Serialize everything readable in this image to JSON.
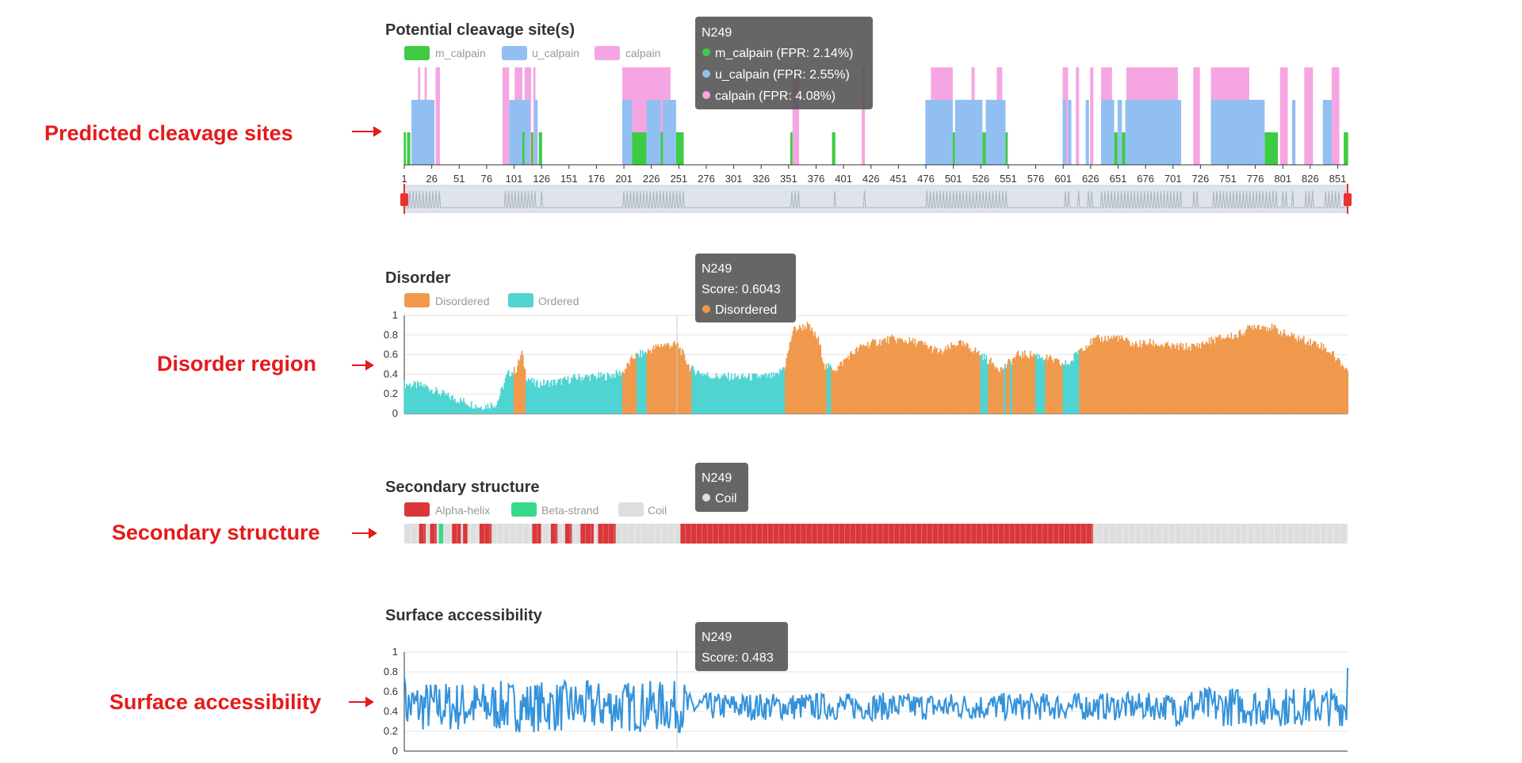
{
  "side_labels": {
    "cleavage": "Predicted cleavage sites",
    "disorder": "Disorder region",
    "secondary": "Secondary structure",
    "surface": "Surface accessibility"
  },
  "colors": {
    "m_calpain": "#3ecb44",
    "u_calpain": "#92bff2",
    "calpain": "#f5a6e2",
    "disordered": "#f0994c",
    "ordered": "#4fd4d2",
    "alpha_helix": "#d9373a",
    "beta_strand": "#39d98a",
    "coil": "#dedede",
    "surface_line": "#3392db",
    "side_label": "#e51a1a"
  },
  "chart_data": [
    {
      "type": "bar",
      "title": "Potential cleavage site(s)",
      "legend": [
        "m_calpain",
        "u_calpain",
        "calpain"
      ],
      "x_ticks": [
        "1",
        "26",
        "51",
        "76",
        "101",
        "126",
        "151",
        "176",
        "201",
        "226",
        "251",
        "276",
        "301",
        "326",
        "351",
        "376",
        "401",
        "426",
        "451",
        "476",
        "501",
        "526",
        "551",
        "576",
        "601",
        "626",
        "651",
        "676",
        "701",
        "726",
        "751",
        "776",
        "801",
        "826",
        "851"
      ],
      "x_range": [
        1,
        860
      ],
      "levels": {
        "m_calpain": 1,
        "u_calpain": 2,
        "calpain": 3
      },
      "m_calpain_segments": [
        [
          1,
          2
        ],
        [
          4,
          6
        ],
        [
          109,
          110
        ],
        [
          117,
          118
        ],
        [
          124,
          126
        ],
        [
          209,
          221
        ],
        [
          235,
          236
        ],
        [
          249,
          255
        ],
        [
          353,
          354
        ],
        [
          391,
          393
        ],
        [
          501,
          502
        ],
        [
          528,
          530
        ],
        [
          549,
          550
        ],
        [
          648,
          650
        ],
        [
          655,
          657
        ],
        [
          785,
          796
        ],
        [
          857,
          860
        ]
      ],
      "u_calpain_segments": [
        [
          8,
          28
        ],
        [
          97,
          115
        ],
        [
          120,
          122
        ],
        [
          200,
          208
        ],
        [
          222,
          234
        ],
        [
          237,
          248
        ],
        [
          476,
          500
        ],
        [
          503,
          527
        ],
        [
          531,
          548
        ],
        [
          601,
          603
        ],
        [
          606,
          608
        ],
        [
          622,
          624
        ],
        [
          636,
          647
        ],
        [
          651,
          654
        ],
        [
          658,
          708
        ],
        [
          736,
          784
        ],
        [
          810,
          812
        ],
        [
          838,
          845
        ]
      ],
      "calpain_segments": [
        [
          14,
          15
        ],
        [
          20,
          21
        ],
        [
          30,
          33
        ],
        [
          91,
          96
        ],
        [
          102,
          108
        ],
        [
          111,
          116
        ],
        [
          119,
          120
        ],
        [
          200,
          243
        ],
        [
          355,
          360
        ],
        [
          418,
          420
        ],
        [
          481,
          500
        ],
        [
          518,
          520
        ],
        [
          541,
          545
        ],
        [
          601,
          605
        ],
        [
          613,
          615
        ],
        [
          626,
          628
        ],
        [
          636,
          645
        ],
        [
          659,
          705
        ],
        [
          720,
          725
        ],
        [
          736,
          770
        ],
        [
          799,
          805
        ],
        [
          821,
          828
        ],
        [
          846,
          852
        ]
      ],
      "tooltip": {
        "title": "N249",
        "items": [
          "m_calpain (FPR: 2.14%)",
          "u_calpain (FPR: 2.55%)",
          "calpain (FPR: 4.08%)"
        ]
      }
    },
    {
      "type": "bar",
      "title": "Disorder",
      "legend": [
        "Disordered",
        "Ordered"
      ],
      "y_ticks": [
        "0",
        "0.2",
        "0.4",
        "0.6",
        "0.8",
        "1"
      ],
      "ylim": [
        0,
        1
      ],
      "x_range": [
        1,
        860
      ],
      "profile": [
        [
          1,
          0.3
        ],
        [
          20,
          0.28
        ],
        [
          35,
          0.2
        ],
        [
          50,
          0.14
        ],
        [
          70,
          0.07
        ],
        [
          85,
          0.1
        ],
        [
          95,
          0.4
        ],
        [
          103,
          0.45
        ],
        [
          108,
          0.62
        ],
        [
          112,
          0.38
        ],
        [
          120,
          0.3
        ],
        [
          140,
          0.32
        ],
        [
          160,
          0.37
        ],
        [
          185,
          0.38
        ],
        [
          200,
          0.42
        ],
        [
          210,
          0.58
        ],
        [
          220,
          0.62
        ],
        [
          235,
          0.7
        ],
        [
          250,
          0.7
        ],
        [
          262,
          0.45
        ],
        [
          280,
          0.38
        ],
        [
          310,
          0.37
        ],
        [
          340,
          0.38
        ],
        [
          348,
          0.5
        ],
        [
          355,
          0.85
        ],
        [
          368,
          0.9
        ],
        [
          378,
          0.75
        ],
        [
          384,
          0.48
        ],
        [
          395,
          0.46
        ],
        [
          405,
          0.58
        ],
        [
          420,
          0.7
        ],
        [
          445,
          0.76
        ],
        [
          470,
          0.72
        ],
        [
          490,
          0.62
        ],
        [
          505,
          0.72
        ],
        [
          520,
          0.65
        ],
        [
          532,
          0.55
        ],
        [
          545,
          0.45
        ],
        [
          560,
          0.6
        ],
        [
          575,
          0.6
        ],
        [
          590,
          0.55
        ],
        [
          600,
          0.5
        ],
        [
          608,
          0.52
        ],
        [
          615,
          0.65
        ],
        [
          630,
          0.75
        ],
        [
          650,
          0.78
        ],
        [
          665,
          0.7
        ],
        [
          680,
          0.72
        ],
        [
          700,
          0.68
        ],
        [
          720,
          0.68
        ],
        [
          740,
          0.76
        ],
        [
          760,
          0.8
        ],
        [
          775,
          0.9
        ],
        [
          790,
          0.88
        ],
        [
          805,
          0.8
        ],
        [
          820,
          0.75
        ],
        [
          835,
          0.7
        ],
        [
          845,
          0.62
        ],
        [
          860,
          0.44
        ]
      ],
      "disordered_segments": [
        [
          101,
          111
        ],
        [
          200,
          212
        ],
        [
          222,
          262
        ],
        [
          348,
          385
        ],
        [
          390,
          525
        ],
        [
          533,
          546
        ],
        [
          549,
          552
        ],
        [
          555,
          575
        ],
        [
          585,
          600
        ],
        [
          616,
          860
        ]
      ],
      "tooltip": {
        "title": "N249",
        "score": "Score: 0.6043",
        "state": "Disordered"
      }
    },
    {
      "type": "heatmap",
      "title": "Secondary structure",
      "legend": [
        "Alpha-helix",
        "Beta-strand",
        "Coil"
      ],
      "x_range": [
        1,
        860
      ],
      "helix_segments": [
        [
          15,
          20
        ],
        [
          25,
          30
        ],
        [
          45,
          52
        ],
        [
          55,
          58
        ],
        [
          70,
          80
        ],
        [
          118,
          125
        ],
        [
          135,
          140
        ],
        [
          148,
          153
        ],
        [
          162,
          173
        ],
        [
          178,
          193
        ],
        [
          253,
          628
        ]
      ],
      "strand_segments": [
        [
          33,
          36
        ]
      ],
      "tooltip": {
        "title": "N249",
        "state": "Coil"
      }
    },
    {
      "type": "line",
      "title": "Surface accessibility",
      "y_ticks": [
        "0",
        "0.2",
        "0.4",
        "0.6",
        "0.8",
        "1"
      ],
      "ylim": [
        0,
        1
      ],
      "x_range": [
        1,
        860
      ],
      "tooltip": {
        "title": "N249",
        "score": "Score: 0.483"
      }
    }
  ]
}
